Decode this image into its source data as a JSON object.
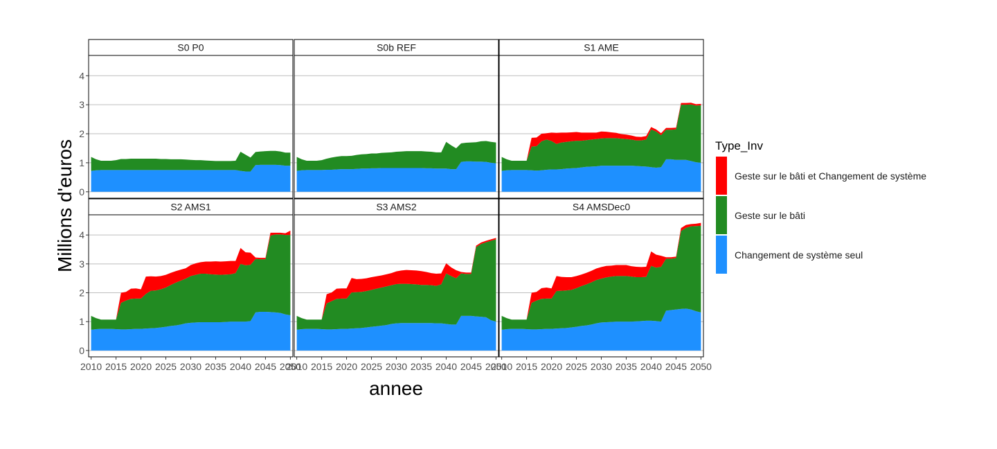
{
  "chart_data": {
    "type": "area",
    "stacked": true,
    "faceted": true,
    "xlabel": "annee",
    "ylabel": "Millions d'euros",
    "xlim": [
      2009.5,
      2050.5
    ],
    "ylim": [
      -0.22,
      4.7
    ],
    "xticks": [
      2010,
      2015,
      2020,
      2025,
      2030,
      2035,
      2040,
      2045,
      2050
    ],
    "xtick_labels": [
      "2010",
      "2015",
      "2020",
      "2025",
      "2030",
      "2035",
      "2040",
      "2045",
      "2050"
    ],
    "yticks": [
      0,
      1,
      2,
      3,
      4
    ],
    "ytick_labels": [
      "0",
      "1",
      "2",
      "3",
      "4"
    ],
    "grid": "horizontal major",
    "legend": {
      "title": "Type_Inv",
      "placement": "right",
      "entries": [
        {
          "label": "Geste sur le bâti et Changement de système",
          "color": "#ff0000"
        },
        {
          "label": "Geste sur le bâti",
          "color": "#228b22"
        },
        {
          "label": "Changement de système seul",
          "color": "#1e90ff"
        }
      ]
    },
    "series_order": [
      "Changement de système seul",
      "Geste sur le bâti",
      "Geste sur le bâti et Changement de système"
    ],
    "colors": {
      "Changement de système seul": "#1e90ff",
      "Geste sur le bâti": "#228b22",
      "Geste sur le bâti et Changement de système": "#ff0000"
    },
    "x": [
      2010,
      2011,
      2012,
      2013,
      2014,
      2015,
      2016,
      2017,
      2018,
      2019,
      2020,
      2021,
      2022,
      2023,
      2024,
      2025,
      2026,
      2027,
      2028,
      2029,
      2030,
      2031,
      2032,
      2033,
      2034,
      2035,
      2036,
      2037,
      2038,
      2039,
      2040,
      2041,
      2042,
      2043,
      2044,
      2045,
      2046,
      2047,
      2048,
      2049,
      2050
    ],
    "panels": [
      {
        "title": "S0 P0",
        "series": [
          {
            "name": "Changement de système seul",
            "values": [
              0.72,
              0.74,
              0.75,
              0.75,
              0.75,
              0.75,
              0.75,
              0.75,
              0.75,
              0.75,
              0.75,
              0.75,
              0.75,
              0.75,
              0.75,
              0.75,
              0.75,
              0.75,
              0.75,
              0.75,
              0.75,
              0.75,
              0.75,
              0.75,
              0.75,
              0.75,
              0.75,
              0.75,
              0.75,
              0.75,
              0.72,
              0.7,
              0.7,
              0.92,
              0.93,
              0.93,
              0.93,
              0.93,
              0.92,
              0.9,
              0.9
            ]
          },
          {
            "name": "Geste sur le bâti",
            "values": [
              0.48,
              0.38,
              0.32,
              0.32,
              0.32,
              0.34,
              0.38,
              0.38,
              0.39,
              0.39,
              0.39,
              0.39,
              0.39,
              0.39,
              0.38,
              0.38,
              0.37,
              0.37,
              0.37,
              0.36,
              0.35,
              0.34,
              0.34,
              0.33,
              0.32,
              0.31,
              0.31,
              0.31,
              0.31,
              0.32,
              0.66,
              0.58,
              0.48,
              0.45,
              0.46,
              0.47,
              0.48,
              0.48,
              0.47,
              0.45,
              0.45
            ]
          },
          {
            "name": "Geste sur le bâti et Changement de système",
            "values": [
              0,
              0,
              0,
              0,
              0,
              0,
              0,
              0,
              0,
              0,
              0,
              0,
              0,
              0,
              0,
              0,
              0,
              0,
              0,
              0,
              0,
              0,
              0,
              0,
              0,
              0,
              0,
              0,
              0,
              0,
              0,
              0,
              0,
              0,
              0,
              0,
              0,
              0,
              0,
              0,
              0
            ]
          }
        ]
      },
      {
        "title": "S0b REF",
        "series": [
          {
            "name": "Changement de système seul",
            "values": [
              0.72,
              0.74,
              0.75,
              0.75,
              0.75,
              0.75,
              0.76,
              0.76,
              0.77,
              0.78,
              0.78,
              0.78,
              0.79,
              0.8,
              0.8,
              0.81,
              0.81,
              0.82,
              0.82,
              0.82,
              0.82,
              0.82,
              0.82,
              0.82,
              0.82,
              0.82,
              0.81,
              0.81,
              0.8,
              0.8,
              0.8,
              0.78,
              0.78,
              1.03,
              1.05,
              1.05,
              1.04,
              1.04,
              1.03,
              1.0,
              0.98
            ]
          },
          {
            "name": "Geste sur le bâti",
            "values": [
              0.48,
              0.38,
              0.32,
              0.32,
              0.32,
              0.34,
              0.38,
              0.42,
              0.44,
              0.45,
              0.45,
              0.46,
              0.48,
              0.49,
              0.5,
              0.51,
              0.51,
              0.52,
              0.53,
              0.54,
              0.56,
              0.57,
              0.58,
              0.58,
              0.58,
              0.58,
              0.58,
              0.57,
              0.56,
              0.56,
              0.92,
              0.82,
              0.72,
              0.64,
              0.64,
              0.65,
              0.67,
              0.7,
              0.72,
              0.72,
              0.72
            ]
          },
          {
            "name": "Geste sur le bâti et Changement de système",
            "values": [
              0,
              0,
              0,
              0,
              0,
              0,
              0,
              0,
              0,
              0,
              0,
              0,
              0,
              0,
              0,
              0,
              0,
              0,
              0,
              0,
              0,
              0,
              0,
              0,
              0,
              0,
              0,
              0,
              0,
              0,
              0,
              0,
              0,
              0,
              0,
              0,
              0,
              0,
              0,
              0,
              0
            ]
          }
        ]
      },
      {
        "title": "S1 AME",
        "series": [
          {
            "name": "Changement de système seul",
            "values": [
              0.72,
              0.74,
              0.75,
              0.75,
              0.75,
              0.75,
              0.74,
              0.73,
              0.74,
              0.76,
              0.77,
              0.77,
              0.78,
              0.8,
              0.81,
              0.82,
              0.84,
              0.86,
              0.87,
              0.88,
              0.9,
              0.9,
              0.9,
              0.9,
              0.9,
              0.9,
              0.9,
              0.89,
              0.88,
              0.87,
              0.85,
              0.83,
              0.85,
              1.12,
              1.12,
              1.1,
              1.1,
              1.1,
              1.06,
              1.02,
              1.0
            ]
          },
          {
            "name": "Geste sur le bâti",
            "values": [
              0.48,
              0.38,
              0.32,
              0.32,
              0.32,
              0.32,
              0.82,
              0.84,
              1.0,
              1.04,
              0.98,
              0.88,
              0.92,
              0.92,
              0.93,
              0.94,
              0.92,
              0.92,
              0.93,
              0.94,
              0.94,
              0.95,
              0.95,
              0.95,
              0.93,
              0.92,
              0.9,
              0.88,
              0.89,
              0.93,
              1.3,
              1.25,
              1.1,
              1.02,
              1.02,
              1.05,
              1.9,
              1.9,
              1.95,
              1.95,
              1.98
            ]
          },
          {
            "name": "Geste sur le bâti et Changement de système",
            "values": [
              0,
              0,
              0,
              0,
              0,
              0,
              0.3,
              0.3,
              0.26,
              0.22,
              0.29,
              0.38,
              0.34,
              0.32,
              0.31,
              0.3,
              0.28,
              0.26,
              0.24,
              0.22,
              0.24,
              0.22,
              0.2,
              0.18,
              0.16,
              0.15,
              0.14,
              0.13,
              0.12,
              0.12,
              0.08,
              0.07,
              0.07,
              0.06,
              0.06,
              0.06,
              0.06,
              0.06,
              0.06,
              0.05,
              0.05
            ]
          }
        ]
      },
      {
        "title": "S2 AMS1",
        "series": [
          {
            "name": "Changement de système seul",
            "values": [
              0.72,
              0.74,
              0.75,
              0.75,
              0.75,
              0.74,
              0.73,
              0.73,
              0.74,
              0.75,
              0.75,
              0.76,
              0.77,
              0.78,
              0.8,
              0.82,
              0.85,
              0.87,
              0.9,
              0.94,
              0.96,
              0.97,
              0.98,
              0.98,
              0.98,
              0.98,
              0.98,
              0.99,
              1.0,
              1.0,
              1.0,
              1.0,
              1.02,
              1.32,
              1.34,
              1.34,
              1.33,
              1.32,
              1.3,
              1.25,
              1.22
            ]
          },
          {
            "name": "Geste sur le bâti",
            "values": [
              0.48,
              0.38,
              0.32,
              0.32,
              0.32,
              0.33,
              0.92,
              1.0,
              1.05,
              1.05,
              1.05,
              1.2,
              1.3,
              1.3,
              1.32,
              1.36,
              1.42,
              1.48,
              1.52,
              1.55,
              1.62,
              1.65,
              1.68,
              1.68,
              1.66,
              1.65,
              1.64,
              1.64,
              1.64,
              1.68,
              2.0,
              1.95,
              1.95,
              1.85,
              1.82,
              1.82,
              2.65,
              2.7,
              2.72,
              2.75,
              2.78
            ]
          },
          {
            "name": "Geste sur le bâti et Changement de système",
            "values": [
              0,
              0,
              0,
              0,
              0,
              0,
              0.35,
              0.3,
              0.35,
              0.35,
              0.32,
              0.6,
              0.5,
              0.48,
              0.46,
              0.44,
              0.42,
              0.4,
              0.38,
              0.36,
              0.38,
              0.4,
              0.4,
              0.42,
              0.44,
              0.46,
              0.46,
              0.46,
              0.46,
              0.42,
              0.55,
              0.45,
              0.42,
              0.05,
              0.05,
              0.05,
              0.1,
              0.06,
              0.06,
              0.06,
              0.15
            ]
          }
        ]
      },
      {
        "title": "S3 AMS2",
        "series": [
          {
            "name": "Changement de système seul",
            "values": [
              0.72,
              0.74,
              0.75,
              0.75,
              0.75,
              0.74,
              0.73,
              0.73,
              0.74,
              0.75,
              0.75,
              0.76,
              0.77,
              0.78,
              0.8,
              0.82,
              0.84,
              0.86,
              0.88,
              0.92,
              0.94,
              0.95,
              0.95,
              0.95,
              0.95,
              0.95,
              0.95,
              0.95,
              0.94,
              0.94,
              0.92,
              0.9,
              0.9,
              1.2,
              1.2,
              1.2,
              1.18,
              1.17,
              1.15,
              1.05,
              1.0
            ]
          },
          {
            "name": "Geste sur le bâti",
            "values": [
              0.48,
              0.38,
              0.32,
              0.32,
              0.32,
              0.33,
              0.9,
              0.98,
              1.05,
              1.05,
              1.05,
              1.25,
              1.25,
              1.25,
              1.26,
              1.28,
              1.3,
              1.32,
              1.34,
              1.34,
              1.36,
              1.36,
              1.36,
              1.35,
              1.34,
              1.32,
              1.32,
              1.31,
              1.3,
              1.35,
              1.75,
              1.68,
              1.6,
              1.47,
              1.45,
              1.45,
              2.4,
              2.52,
              2.6,
              2.75,
              2.85
            ]
          },
          {
            "name": "Geste sur le bâti et Changement de système",
            "values": [
              0,
              0,
              0,
              0,
              0,
              0,
              0.32,
              0.3,
              0.35,
              0.35,
              0.35,
              0.5,
              0.45,
              0.45,
              0.44,
              0.44,
              0.43,
              0.42,
              0.42,
              0.42,
              0.44,
              0.46,
              0.48,
              0.48,
              0.48,
              0.48,
              0.45,
              0.42,
              0.42,
              0.38,
              0.35,
              0.3,
              0.28,
              0.05,
              0.05,
              0.05,
              0.05,
              0.05,
              0.05,
              0.05,
              0.05
            ]
          }
        ]
      },
      {
        "title": "S4 AMSDec0",
        "series": [
          {
            "name": "Changement de système seul",
            "values": [
              0.72,
              0.74,
              0.75,
              0.75,
              0.75,
              0.74,
              0.73,
              0.73,
              0.74,
              0.75,
              0.75,
              0.76,
              0.77,
              0.78,
              0.8,
              0.82,
              0.85,
              0.87,
              0.9,
              0.94,
              0.97,
              0.98,
              0.99,
              1.0,
              1.0,
              1.0,
              1.0,
              1.01,
              1.02,
              1.03,
              1.03,
              1.02,
              1.0,
              1.38,
              1.4,
              1.42,
              1.44,
              1.45,
              1.42,
              1.36,
              1.32
            ]
          },
          {
            "name": "Geste sur le bâti",
            "values": [
              0.48,
              0.38,
              0.32,
              0.32,
              0.32,
              0.33,
              0.92,
              1.0,
              1.05,
              1.05,
              1.05,
              1.3,
              1.3,
              1.3,
              1.3,
              1.34,
              1.38,
              1.42,
              1.46,
              1.5,
              1.52,
              1.55,
              1.57,
              1.58,
              1.58,
              1.58,
              1.56,
              1.53,
              1.52,
              1.52,
              1.9,
              1.85,
              1.9,
              1.8,
              1.78,
              1.78,
              2.7,
              2.8,
              2.88,
              2.95,
              3.0
            ]
          },
          {
            "name": "Geste sur le bâti et Changement de système",
            "values": [
              0,
              0,
              0,
              0,
              0,
              0,
              0.35,
              0.3,
              0.37,
              0.38,
              0.35,
              0.52,
              0.48,
              0.46,
              0.44,
              0.42,
              0.4,
              0.4,
              0.4,
              0.4,
              0.4,
              0.4,
              0.38,
              0.38,
              0.38,
              0.38,
              0.36,
              0.36,
              0.35,
              0.35,
              0.5,
              0.45,
              0.38,
              0.05,
              0.05,
              0.05,
              0.1,
              0.1,
              0.08,
              0.08,
              0.1
            ]
          }
        ]
      }
    ]
  }
}
